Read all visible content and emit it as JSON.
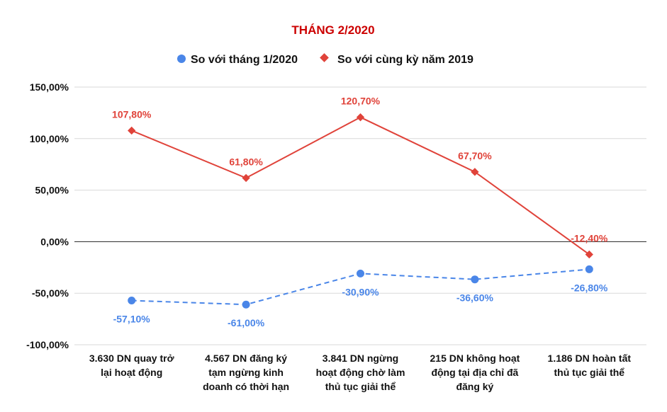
{
  "chart_data": {
    "type": "line",
    "title": "THÁNG 2/2020",
    "categories": [
      [
        "3.630 DN quay trở",
        "lại hoạt động"
      ],
      [
        "4.567 DN đăng ký",
        "tạm ngừng kinh",
        "doanh có thời hạn"
      ],
      [
        "3.841 DN ngừng",
        "hoạt động chờ làm",
        "thủ tục giải thể"
      ],
      [
        "215 DN không hoạt",
        "động tại địa chỉ đã",
        "đăng ký"
      ],
      [
        "1.186 DN hoàn tất",
        "thủ tục giải thể"
      ]
    ],
    "series": [
      {
        "name": "So với tháng 1/2020",
        "values": [
          -57.1,
          -61.0,
          -30.9,
          -36.6,
          -26.8
        ],
        "labels": [
          "-57,10%",
          "-61,00%",
          "-30,90%",
          "-36,60%",
          "-26,80%"
        ],
        "color": "#4a86e8",
        "marker": "circle",
        "line_style": "dashed"
      },
      {
        "name": "So với cùng kỳ năm 2019",
        "values": [
          107.8,
          61.8,
          120.7,
          67.7,
          -12.4
        ],
        "labels": [
          "107,80%",
          "61,80%",
          "120,70%",
          "67,70%",
          "-12,40%"
        ],
        "color": "#e0433a",
        "marker": "diamond",
        "line_style": "solid"
      }
    ],
    "ylim": [
      -100,
      150
    ],
    "yticks": [
      150,
      100,
      50,
      0,
      -50,
      -100
    ],
    "ytick_labels": [
      "150,00%",
      "100,00%",
      "50,00%",
      "0,00%",
      "-50,00%",
      "-100,00%"
    ],
    "title_color": "#cc0000",
    "grid": true,
    "legend_position": "top-center",
    "xlabel": "",
    "ylabel": ""
  }
}
